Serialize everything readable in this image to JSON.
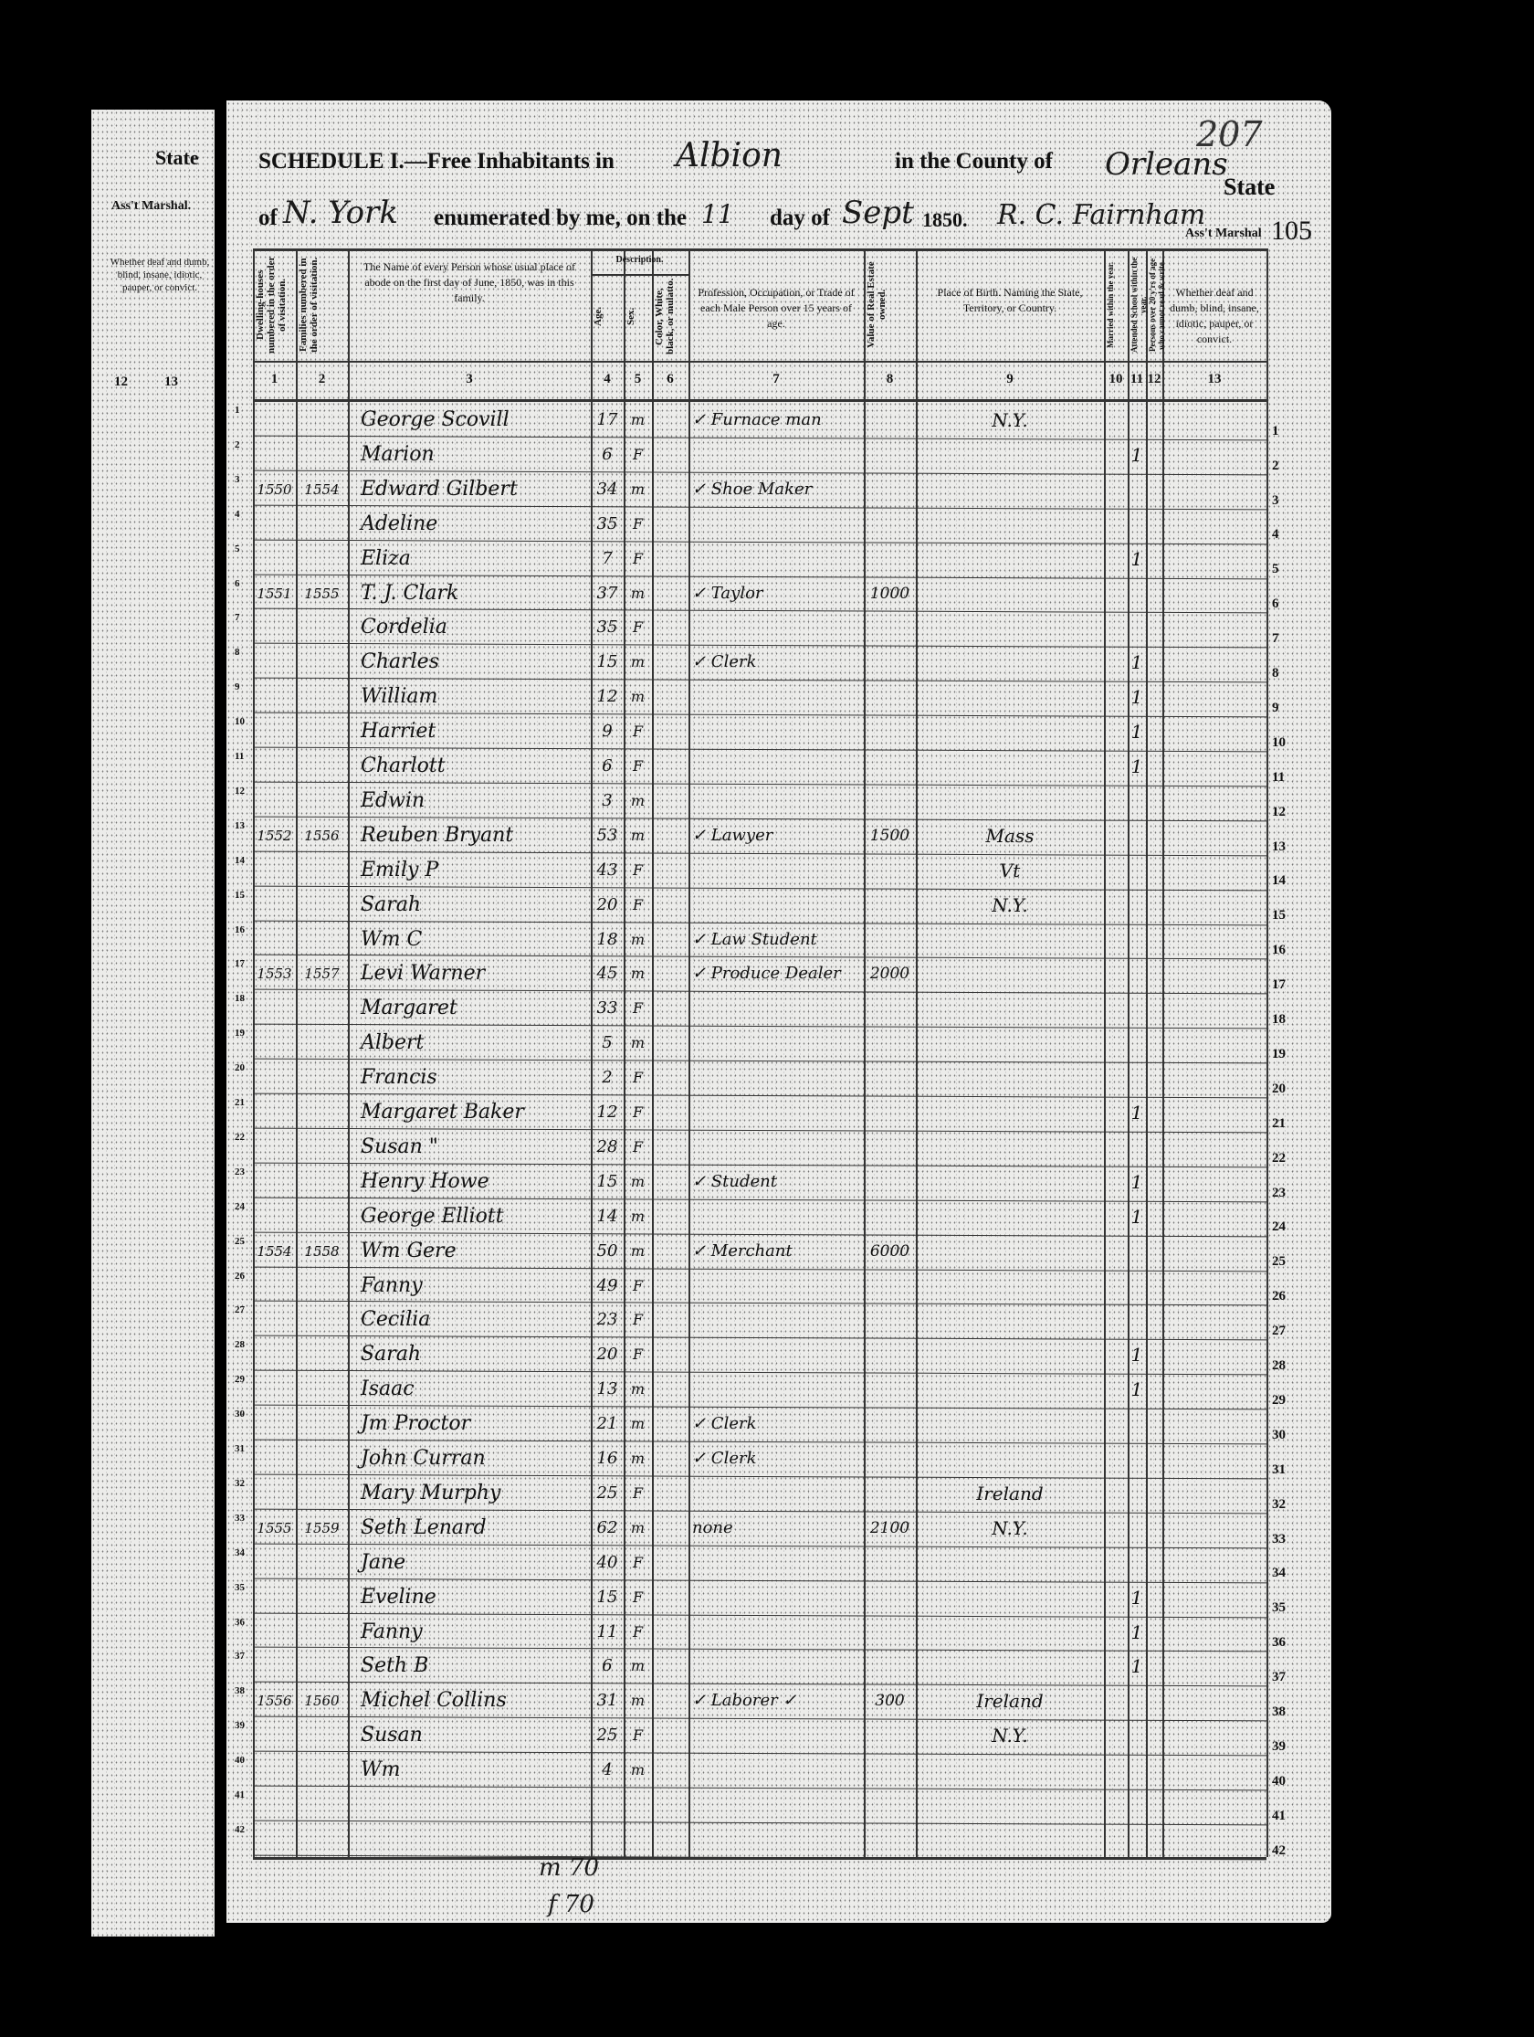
{
  "previous_page": {
    "state_label": "State",
    "marshal_label": "Ass't Marshal.",
    "column_heading": "Whether deaf and dumb, blind, insane, idiotic, pauper, or convict.",
    "column_numbers": [
      "12",
      "13"
    ]
  },
  "header": {
    "schedule_title": "SCHEDULE I.—Free Inhabitants in",
    "place": "Albion",
    "county_label": "in the County of",
    "county": "Orleans",
    "state_label": "State",
    "of_label": "of",
    "state": "N. York",
    "enumerated_label": "enumerated by me, on the",
    "day": "11",
    "day_of_label": "day of",
    "month": "Sept",
    "year": "1850.",
    "marshal_name": "R. C. Fairnham",
    "marshal_label": "Ass't Marshal",
    "page_number": "105",
    "stamp_number": "207"
  },
  "columns": [
    {
      "num": "1",
      "label": "Dwelling-houses numbered in the order of visitation."
    },
    {
      "num": "2",
      "label": "Families numbered in the order of visitation."
    },
    {
      "num": "3",
      "label": "The Name of every Person whose usual place of abode on the first day of June, 1850, was in this family."
    },
    {
      "num": "4",
      "label": "Age."
    },
    {
      "num": "5",
      "label": "Sex."
    },
    {
      "num": "6",
      "label": "Color, White, black, or mulatto."
    },
    {
      "num": "7",
      "label": "Profession, Occupation, or Trade of each Male Person over 15 years of age."
    },
    {
      "num": "8",
      "label": "Value of Real Estate owned."
    },
    {
      "num": "9",
      "label": "Place of Birth. Naming the State, Territory, or Country."
    },
    {
      "num": "10",
      "label": "Married within the year."
    },
    {
      "num": "11",
      "label": "Attended School within the year."
    },
    {
      "num": "12",
      "label": "Persons over 20 y'rs of age who cannot read & write."
    },
    {
      "num": "13",
      "label": "Whether deaf and dumb, blind, insane, idiotic, pauper, or convict."
    }
  ],
  "description_label": "Description.",
  "rows": [
    {
      "line": "1",
      "dwelling": "",
      "family": "",
      "name": "George Scovill",
      "age": "17",
      "sex": "m",
      "occupation": "✓ Furnace man",
      "value": "",
      "birthplace": "N.Y.",
      "school": ""
    },
    {
      "line": "2",
      "dwelling": "",
      "family": "",
      "name": "Marion",
      "age": "6",
      "sex": "F",
      "occupation": "",
      "value": "",
      "birthplace": "",
      "school": "1"
    },
    {
      "line": "3",
      "dwelling": "1550",
      "family": "1554",
      "name": "Edward Gilbert",
      "age": "34",
      "sex": "m",
      "occupation": "✓ Shoe Maker",
      "value": "",
      "birthplace": "",
      "school": ""
    },
    {
      "line": "4",
      "dwelling": "",
      "family": "",
      "name": "Adeline",
      "age": "35",
      "sex": "F",
      "occupation": "",
      "value": "",
      "birthplace": "",
      "school": ""
    },
    {
      "line": "5",
      "dwelling": "",
      "family": "",
      "name": "Eliza",
      "age": "7",
      "sex": "F",
      "occupation": "",
      "value": "",
      "birthplace": "",
      "school": "1"
    },
    {
      "line": "6",
      "dwelling": "1551",
      "family": "1555",
      "name": "T. J. Clark",
      "age": "37",
      "sex": "m",
      "occupation": "✓ Taylor",
      "value": "1000",
      "birthplace": "",
      "school": ""
    },
    {
      "line": "7",
      "dwelling": "",
      "family": "",
      "name": "Cordelia",
      "age": "35",
      "sex": "F",
      "occupation": "",
      "value": "",
      "birthplace": "",
      "school": ""
    },
    {
      "line": "8",
      "dwelling": "",
      "family": "",
      "name": "Charles",
      "age": "15",
      "sex": "m",
      "occupation": "✓ Clerk",
      "value": "",
      "birthplace": "",
      "school": "1"
    },
    {
      "line": "9",
      "dwelling": "",
      "family": "",
      "name": "William",
      "age": "12",
      "sex": "m",
      "occupation": "",
      "value": "",
      "birthplace": "",
      "school": "1"
    },
    {
      "line": "10",
      "dwelling": "",
      "family": "",
      "name": "Harriet",
      "age": "9",
      "sex": "F",
      "occupation": "",
      "value": "",
      "birthplace": "",
      "school": "1"
    },
    {
      "line": "11",
      "dwelling": "",
      "family": "",
      "name": "Charlott",
      "age": "6",
      "sex": "F",
      "occupation": "",
      "value": "",
      "birthplace": "",
      "school": "1"
    },
    {
      "line": "12",
      "dwelling": "",
      "family": "",
      "name": "Edwin",
      "age": "3",
      "sex": "m",
      "occupation": "",
      "value": "",
      "birthplace": "",
      "school": ""
    },
    {
      "line": "13",
      "dwelling": "1552",
      "family": "1556",
      "name": "Reuben Bryant",
      "age": "53",
      "sex": "m",
      "occupation": "✓ Lawyer",
      "value": "1500",
      "birthplace": "Mass",
      "school": ""
    },
    {
      "line": "14",
      "dwelling": "",
      "family": "",
      "name": "Emily P",
      "age": "43",
      "sex": "F",
      "occupation": "",
      "value": "",
      "birthplace": "Vt",
      "school": ""
    },
    {
      "line": "15",
      "dwelling": "",
      "family": "",
      "name": "Sarah",
      "age": "20",
      "sex": "F",
      "occupation": "",
      "value": "",
      "birthplace": "N.Y.",
      "school": ""
    },
    {
      "line": "16",
      "dwelling": "",
      "family": "",
      "name": "Wm C",
      "age": "18",
      "sex": "m",
      "occupation": "✓ Law Student",
      "value": "",
      "birthplace": "",
      "school": ""
    },
    {
      "line": "17",
      "dwelling": "1553",
      "family": "1557",
      "name": "Levi Warner",
      "age": "45",
      "sex": "m",
      "occupation": "✓ Produce Dealer",
      "value": "2000",
      "birthplace": "",
      "school": ""
    },
    {
      "line": "18",
      "dwelling": "",
      "family": "",
      "name": "Margaret",
      "age": "33",
      "sex": "F",
      "occupation": "",
      "value": "",
      "birthplace": "",
      "school": ""
    },
    {
      "line": "19",
      "dwelling": "",
      "family": "",
      "name": "Albert",
      "age": "5",
      "sex": "m",
      "occupation": "",
      "value": "",
      "birthplace": "",
      "school": ""
    },
    {
      "line": "20",
      "dwelling": "",
      "family": "",
      "name": "Francis",
      "age": "2",
      "sex": "F",
      "occupation": "",
      "value": "",
      "birthplace": "",
      "school": ""
    },
    {
      "line": "21",
      "dwelling": "",
      "family": "",
      "name": "Margaret Baker",
      "age": "12",
      "sex": "F",
      "occupation": "",
      "value": "",
      "birthplace": "",
      "school": "1"
    },
    {
      "line": "22",
      "dwelling": "",
      "family": "",
      "name": "Susan \"",
      "age": "28",
      "sex": "F",
      "occupation": "",
      "value": "",
      "birthplace": "",
      "school": ""
    },
    {
      "line": "23",
      "dwelling": "",
      "family": "",
      "name": "Henry Howe",
      "age": "15",
      "sex": "m",
      "occupation": "✓ Student",
      "value": "",
      "birthplace": "",
      "school": "1"
    },
    {
      "line": "24",
      "dwelling": "",
      "family": "",
      "name": "George Elliott",
      "age": "14",
      "sex": "m",
      "occupation": "",
      "value": "",
      "birthplace": "",
      "school": "1"
    },
    {
      "line": "25",
      "dwelling": "1554",
      "family": "1558",
      "name": "Wm Gere",
      "age": "50",
      "sex": "m",
      "occupation": "✓ Merchant",
      "value": "6000",
      "birthplace": "",
      "school": ""
    },
    {
      "line": "26",
      "dwelling": "",
      "family": "",
      "name": "Fanny",
      "age": "49",
      "sex": "F",
      "occupation": "",
      "value": "",
      "birthplace": "",
      "school": ""
    },
    {
      "line": "27",
      "dwelling": "",
      "family": "",
      "name": "Cecilia",
      "age": "23",
      "sex": "F",
      "occupation": "",
      "value": "",
      "birthplace": "",
      "school": ""
    },
    {
      "line": "28",
      "dwelling": "",
      "family": "",
      "name": "Sarah",
      "age": "20",
      "sex": "F",
      "occupation": "",
      "value": "",
      "birthplace": "",
      "school": "1"
    },
    {
      "line": "29",
      "dwelling": "",
      "family": "",
      "name": "Isaac",
      "age": "13",
      "sex": "m",
      "occupation": "",
      "value": "",
      "birthplace": "",
      "school": "1"
    },
    {
      "line": "30",
      "dwelling": "",
      "family": "",
      "name": "Jm Proctor",
      "age": "21",
      "sex": "m",
      "occupation": "✓ Clerk",
      "value": "",
      "birthplace": "",
      "school": ""
    },
    {
      "line": "31",
      "dwelling": "",
      "family": "",
      "name": "John Curran",
      "age": "16",
      "sex": "m",
      "occupation": "✓ Clerk",
      "value": "",
      "birthplace": "",
      "school": ""
    },
    {
      "line": "32",
      "dwelling": "",
      "family": "",
      "name": "Mary Murphy",
      "age": "25",
      "sex": "F",
      "occupation": "",
      "value": "",
      "birthplace": "Ireland",
      "school": ""
    },
    {
      "line": "33",
      "dwelling": "1555",
      "family": "1559",
      "name": "Seth Lenard",
      "age": "62",
      "sex": "m",
      "occupation": "none",
      "value": "2100",
      "birthplace": "N.Y.",
      "school": ""
    },
    {
      "line": "34",
      "dwelling": "",
      "family": "",
      "name": "Jane",
      "age": "40",
      "sex": "F",
      "occupation": "",
      "value": "",
      "birthplace": "",
      "school": ""
    },
    {
      "line": "35",
      "dwelling": "",
      "family": "",
      "name": "Eveline",
      "age": "15",
      "sex": "F",
      "occupation": "",
      "value": "",
      "birthplace": "",
      "school": "1"
    },
    {
      "line": "36",
      "dwelling": "",
      "family": "",
      "name": "Fanny",
      "age": "11",
      "sex": "F",
      "occupation": "",
      "value": "",
      "birthplace": "",
      "school": "1"
    },
    {
      "line": "37",
      "dwelling": "",
      "family": "",
      "name": "Seth B",
      "age": "6",
      "sex": "m",
      "occupation": "",
      "value": "",
      "birthplace": "",
      "school": "1"
    },
    {
      "line": "38",
      "dwelling": "1556",
      "family": "1560",
      "name": "Michel Collins",
      "age": "31",
      "sex": "m",
      "occupation": "✓ Laborer ✓",
      "value": "300",
      "birthplace": "Ireland",
      "school": ""
    },
    {
      "line": "39",
      "dwelling": "",
      "family": "",
      "name": "Susan",
      "age": "25",
      "sex": "F",
      "occupation": "",
      "value": "",
      "birthplace": "N.Y.",
      "school": ""
    },
    {
      "line": "40",
      "dwelling": "",
      "family": "",
      "name": "Wm",
      "age": "4",
      "sex": "m",
      "occupation": "",
      "value": "",
      "birthplace": "",
      "school": ""
    },
    {
      "line": "41",
      "dwelling": "",
      "family": "",
      "name": "",
      "age": "",
      "sex": "",
      "occupation": "",
      "value": "",
      "birthplace": "",
      "school": ""
    },
    {
      "line": "42",
      "dwelling": "",
      "family": "",
      "name": "",
      "age": "",
      "sex": "",
      "occupation": "",
      "value": "",
      "birthplace": "",
      "school": ""
    }
  ],
  "footer_tally": {
    "males": "m 70",
    "females": "f 70"
  }
}
